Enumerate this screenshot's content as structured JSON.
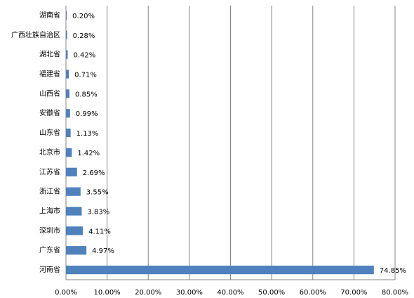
{
  "chart_data": {
    "type": "bar",
    "orientation": "horizontal",
    "color": "#4f81bd",
    "grid": true,
    "categories": [
      "湖南省",
      "广西壮族自治区",
      "湖北省",
      "福建省",
      "山西省",
      "安徽省",
      "山东省",
      "北京市",
      "江苏省",
      "浙江省",
      "上海市",
      "深圳市",
      "广东省",
      "河南省"
    ],
    "values": [
      0.2,
      0.28,
      0.42,
      0.71,
      0.85,
      0.99,
      1.13,
      1.42,
      2.69,
      3.55,
      3.83,
      4.11,
      4.97,
      74.85
    ],
    "value_labels": [
      "0.20%",
      "0.28%",
      "0.42%",
      "0.71%",
      "0.85%",
      "0.99%",
      "1.13%",
      "1.42%",
      "2.69%",
      "3.55%",
      "3.83%",
      "4.11%",
      "4.97%",
      "74.85%"
    ],
    "xlim": [
      0,
      80
    ],
    "xticks": [
      {
        "value": 0,
        "label": "0.00%"
      },
      {
        "value": 10,
        "label": "10.00%"
      },
      {
        "value": 20,
        "label": "20.00%"
      },
      {
        "value": 30,
        "label": "30.00%"
      },
      {
        "value": 40,
        "label": "40.00%"
      },
      {
        "value": 50,
        "label": "50.00%"
      },
      {
        "value": 60,
        "label": "60.00%"
      },
      {
        "value": 70,
        "label": "70.00%"
      },
      {
        "value": 80,
        "label": "80.00%"
      }
    ]
  }
}
